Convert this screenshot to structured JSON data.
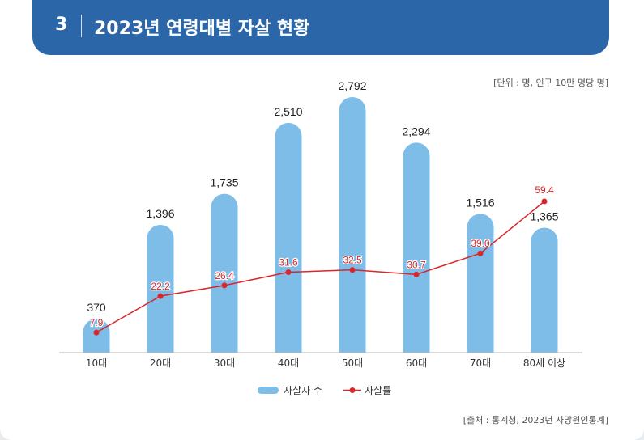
{
  "header": {
    "number": "3",
    "title": "2023년 연령대별 자살 현황"
  },
  "unit_note": "[단위 : 명, 인구 10만 명당 명]",
  "source_note": "[출처 : 통계청, 2023년 사망원인통계]",
  "colors": {
    "bar": "#7dbde8",
    "line": "#d9262a",
    "header": "#2b66a8"
  },
  "chart_data": {
    "type": "bar+line",
    "categories": [
      "10대",
      "20대",
      "30대",
      "40대",
      "50대",
      "60대",
      "70대",
      "80세 이상"
    ],
    "series": [
      {
        "name": "자살자 수",
        "type": "bar",
        "values": [
          370,
          1396,
          1735,
          2510,
          2792,
          2294,
          1516,
          1365
        ],
        "labels": [
          "370",
          "1,396",
          "1,735",
          "2,510",
          "2,792",
          "2,294",
          "1,516",
          "1,365"
        ]
      },
      {
        "name": "자살률",
        "type": "line",
        "values": [
          7.9,
          22.2,
          26.4,
          31.6,
          32.5,
          30.7,
          39.0,
          59.4
        ],
        "labels": [
          "7.9",
          "22.2",
          "26.4",
          "31.6",
          "32.5",
          "30.7",
          "39.0",
          "59.4"
        ]
      }
    ],
    "legend": {
      "bar": "자살자 수",
      "line": "자살률",
      "position": "bottom-center"
    },
    "bar_ylim": [
      0,
      3000
    ],
    "line_ylim": [
      0,
      80
    ]
  }
}
